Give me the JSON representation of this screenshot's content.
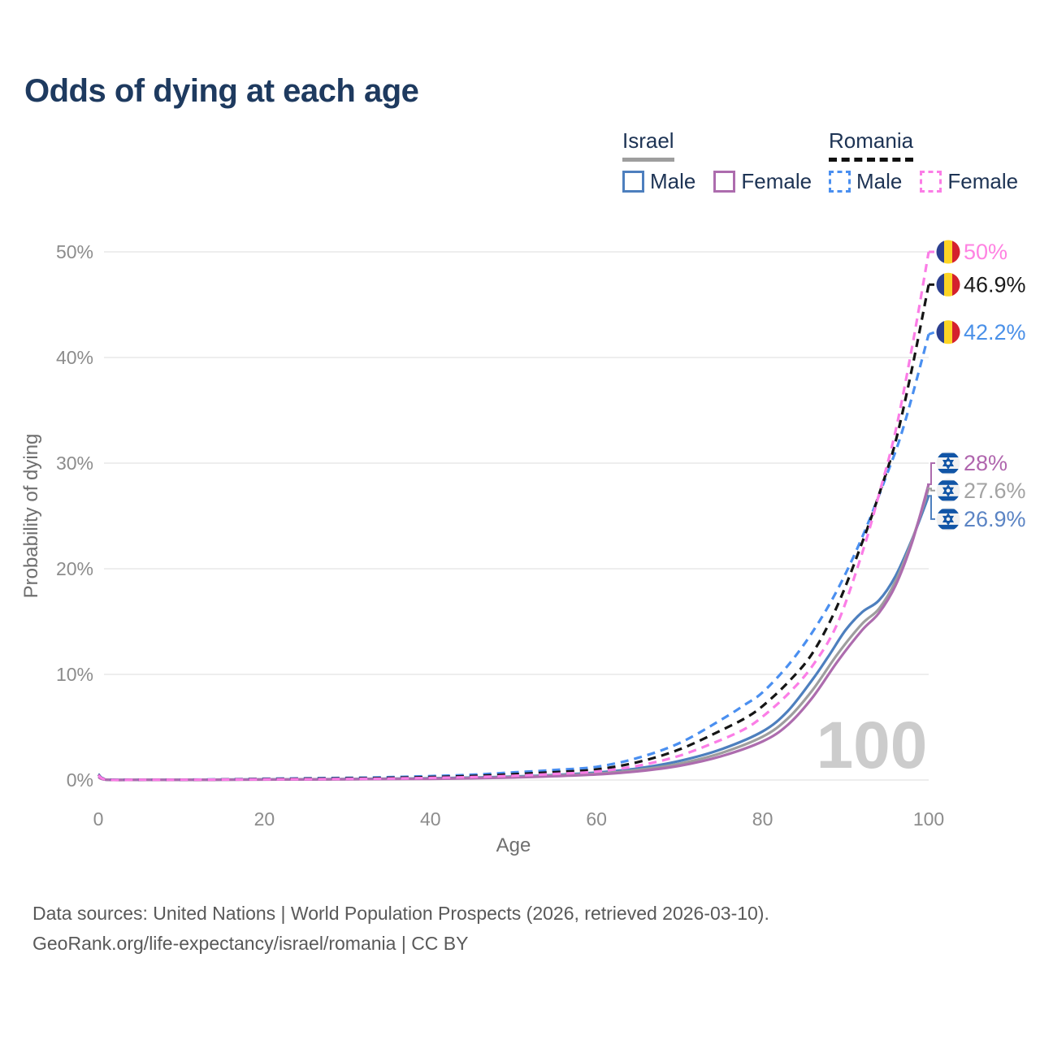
{
  "title": "Odds of dying at each age",
  "watermark_age": "100",
  "colors": {
    "title": "#1e3a5f",
    "legend_text": "#1d3354",
    "axis_text": "#8c8c8c",
    "axis_title_text": "#6f6f6f",
    "gridline": "#e9e9e9",
    "watermark": "#cccccc",
    "israel_underline": "#9e9e9e",
    "romania_underline": "#111111",
    "footer_text": "#595959"
  },
  "legend": {
    "israel": {
      "label": "Israel",
      "male": "Male",
      "female": "Female"
    },
    "romania": {
      "label": "Romania",
      "male": "Male",
      "female": "Female"
    }
  },
  "footer": {
    "line1": "Data sources: United Nations | World Population Prospects (2026, retrieved 2026-03-10).",
    "line2": "GeoRank.org/life-expectancy/israel/romania | CC BY"
  },
  "chart_data": {
    "type": "line",
    "title": "Odds of dying at each age",
    "xlabel": "Age",
    "ylabel": "Probability of dying",
    "xlim": [
      0,
      100
    ],
    "ylim": [
      0,
      52
    ],
    "x_ticks": [
      0,
      20,
      40,
      60,
      80,
      100
    ],
    "y_ticks": [
      "0%",
      "10%",
      "20%",
      "30%",
      "40%",
      "50%"
    ],
    "grid": true,
    "legend_position": "top-right",
    "series": [
      {
        "id": "il_m",
        "name": "Israel male",
        "country": "Israel",
        "sex": "Male",
        "color": "#4d7fbe",
        "dashed": false,
        "flag": "israel",
        "end_label": "26.9%",
        "end_value": 26.9,
        "label_color": "#5b84c4",
        "label_at": 24.7,
        "points": [
          [
            0,
            0.32
          ],
          [
            1,
            0.03
          ],
          [
            5,
            0.02
          ],
          [
            10,
            0.02
          ],
          [
            15,
            0.04
          ],
          [
            20,
            0.06
          ],
          [
            25,
            0.07
          ],
          [
            30,
            0.09
          ],
          [
            35,
            0.12
          ],
          [
            40,
            0.16
          ],
          [
            45,
            0.23
          ],
          [
            50,
            0.33
          ],
          [
            55,
            0.48
          ],
          [
            60,
            0.7
          ],
          [
            65,
            1.1
          ],
          [
            70,
            1.8
          ],
          [
            75,
            2.9
          ],
          [
            80,
            4.6
          ],
          [
            83,
            6.5
          ],
          [
            86,
            9.5
          ],
          [
            88,
            11.8
          ],
          [
            90,
            14.2
          ],
          [
            92,
            15.9
          ],
          [
            94,
            17.0
          ],
          [
            96,
            19.3
          ],
          [
            98,
            22.8
          ],
          [
            100,
            26.9
          ]
        ]
      },
      {
        "id": "il_a",
        "name": "Israel both sexes",
        "country": "Israel",
        "sex": "Both",
        "color": "#9e9e9e",
        "dashed": false,
        "flag": "israel",
        "end_label": "27.6%",
        "end_value": 27.6,
        "label_color": "#a3a3a3",
        "label_at": 27.4,
        "points": [
          [
            0,
            0.3
          ],
          [
            1,
            0.025
          ],
          [
            5,
            0.015
          ],
          [
            10,
            0.015
          ],
          [
            15,
            0.03
          ],
          [
            20,
            0.05
          ],
          [
            25,
            0.06
          ],
          [
            30,
            0.08
          ],
          [
            35,
            0.1
          ],
          [
            40,
            0.13
          ],
          [
            45,
            0.19
          ],
          [
            50,
            0.28
          ],
          [
            55,
            0.42
          ],
          [
            60,
            0.6
          ],
          [
            65,
            0.95
          ],
          [
            70,
            1.55
          ],
          [
            75,
            2.55
          ],
          [
            80,
            4.1
          ],
          [
            83,
            5.8
          ],
          [
            86,
            8.5
          ],
          [
            89,
            11.9
          ],
          [
            92,
            14.8
          ],
          [
            94,
            16.2
          ],
          [
            96,
            18.8
          ],
          [
            98,
            22.7
          ],
          [
            100,
            27.6
          ]
        ]
      },
      {
        "id": "il_f",
        "name": "Israel female",
        "country": "Israel",
        "sex": "Female",
        "color": "#ad6cae",
        "dashed": false,
        "flag": "israel",
        "end_label": "28%",
        "end_value": 28,
        "label_color": "#b066ae",
        "label_at": 30.0,
        "points": [
          [
            0,
            0.28
          ],
          [
            1,
            0.02
          ],
          [
            5,
            0.015
          ],
          [
            10,
            0.015
          ],
          [
            15,
            0.025
          ],
          [
            20,
            0.04
          ],
          [
            25,
            0.05
          ],
          [
            30,
            0.07
          ],
          [
            35,
            0.09
          ],
          [
            40,
            0.11
          ],
          [
            45,
            0.16
          ],
          [
            50,
            0.24
          ],
          [
            55,
            0.36
          ],
          [
            60,
            0.52
          ],
          [
            65,
            0.82
          ],
          [
            70,
            1.35
          ],
          [
            75,
            2.25
          ],
          [
            80,
            3.65
          ],
          [
            83,
            5.2
          ],
          [
            86,
            7.8
          ],
          [
            89,
            11.2
          ],
          [
            92,
            14.2
          ],
          [
            94,
            15.8
          ],
          [
            96,
            18.4
          ],
          [
            98,
            22.5
          ],
          [
            100,
            28.0
          ]
        ]
      },
      {
        "id": "ro_m",
        "name": "Romania male",
        "country": "Romania",
        "sex": "Male",
        "color": "#4a8ff0",
        "dashed": true,
        "flag": "romania",
        "end_label": "42.2%",
        "end_value": 42.2,
        "label_color": "#4a90e8",
        "label_at": 42.4,
        "points": [
          [
            0,
            0.55
          ],
          [
            1,
            0.06
          ],
          [
            5,
            0.03
          ],
          [
            10,
            0.03
          ],
          [
            15,
            0.06
          ],
          [
            20,
            0.12
          ],
          [
            25,
            0.16
          ],
          [
            30,
            0.2
          ],
          [
            35,
            0.27
          ],
          [
            40,
            0.37
          ],
          [
            45,
            0.5
          ],
          [
            50,
            0.72
          ],
          [
            55,
            0.95
          ],
          [
            60,
            1.25
          ],
          [
            65,
            2.1
          ],
          [
            70,
            3.5
          ],
          [
            75,
            5.7
          ],
          [
            78,
            7.2
          ],
          [
            80,
            8.3
          ],
          [
            83,
            10.8
          ],
          [
            86,
            14.0
          ],
          [
            89,
            18.0
          ],
          [
            92,
            23.0
          ],
          [
            95,
            29.0
          ],
          [
            97,
            33.5
          ],
          [
            100,
            42.2
          ]
        ]
      },
      {
        "id": "ro_a",
        "name": "Romania both sexes",
        "country": "Romania",
        "sex": "Both",
        "color": "#151515",
        "dashed": true,
        "flag": "romania",
        "end_label": "46.9%",
        "end_value": 46.9,
        "label_color": "#1a1a1a",
        "label_at": 46.9,
        "points": [
          [
            0,
            0.5
          ],
          [
            1,
            0.05
          ],
          [
            5,
            0.02
          ],
          [
            10,
            0.02
          ],
          [
            15,
            0.05
          ],
          [
            20,
            0.09
          ],
          [
            25,
            0.12
          ],
          [
            30,
            0.15
          ],
          [
            35,
            0.2
          ],
          [
            40,
            0.28
          ],
          [
            45,
            0.38
          ],
          [
            50,
            0.55
          ],
          [
            55,
            0.75
          ],
          [
            60,
            1.0
          ],
          [
            65,
            1.7
          ],
          [
            70,
            2.9
          ],
          [
            75,
            4.7
          ],
          [
            78,
            5.9
          ],
          [
            80,
            7.0
          ],
          [
            83,
            9.2
          ],
          [
            86,
            12.0
          ],
          [
            89,
            16.5
          ],
          [
            92,
            22.5
          ],
          [
            94,
            27.0
          ],
          [
            96,
            32.0
          ],
          [
            98,
            39.0
          ],
          [
            100,
            46.9
          ]
        ]
      },
      {
        "id": "ro_f",
        "name": "Romania female",
        "country": "Romania",
        "sex": "Female",
        "color": "#fb7de6",
        "dashed": true,
        "flag": "romania",
        "end_label": "50%",
        "end_value": 50,
        "label_color": "#ff82e2",
        "label_at": 50.0,
        "points": [
          [
            0,
            0.45
          ],
          [
            1,
            0.04
          ],
          [
            5,
            0.02
          ],
          [
            10,
            0.02
          ],
          [
            15,
            0.04
          ],
          [
            20,
            0.06
          ],
          [
            25,
            0.08
          ],
          [
            30,
            0.1
          ],
          [
            35,
            0.14
          ],
          [
            40,
            0.2
          ],
          [
            45,
            0.28
          ],
          [
            50,
            0.4
          ],
          [
            55,
            0.58
          ],
          [
            60,
            0.8
          ],
          [
            65,
            1.35
          ],
          [
            70,
            2.3
          ],
          [
            75,
            3.8
          ],
          [
            78,
            4.9
          ],
          [
            80,
            6.0
          ],
          [
            83,
            8.1
          ],
          [
            86,
            10.8
          ],
          [
            89,
            14.8
          ],
          [
            92,
            21.5
          ],
          [
            94,
            27.0
          ],
          [
            96,
            33.0
          ],
          [
            98,
            41.0
          ],
          [
            100,
            50.0
          ]
        ]
      }
    ]
  }
}
